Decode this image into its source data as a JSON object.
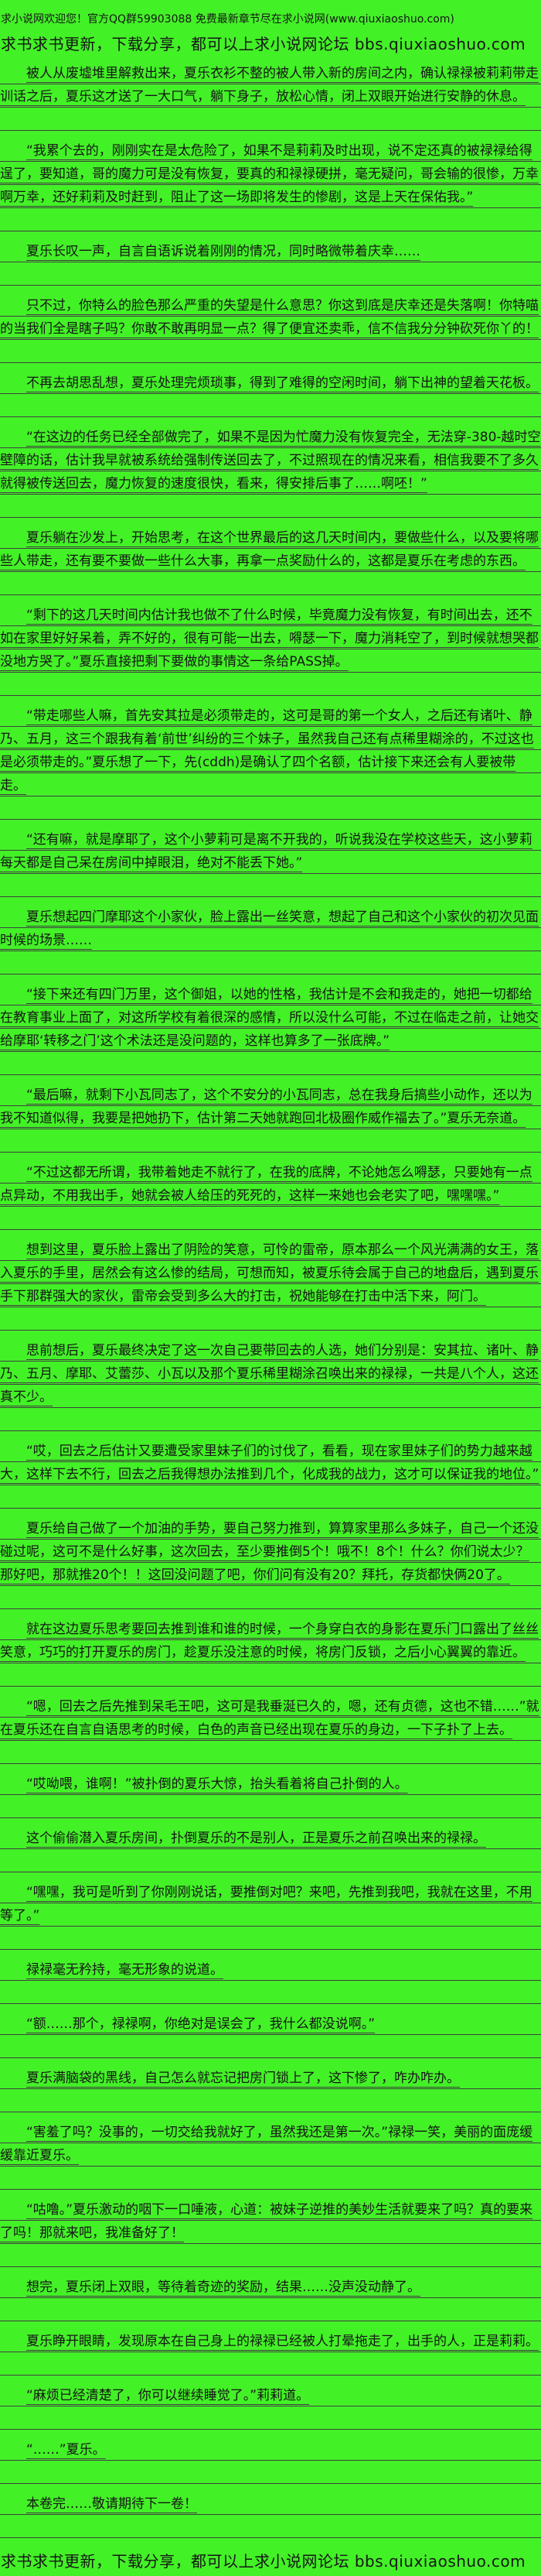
{
  "site": {
    "colors": {
      "background": "#43f127",
      "text": "#161616",
      "rule_line": "#3f3f3f"
    }
  },
  "header": {
    "welcome_line": "求小说网欢迎您！官方QQ群59903088 免费最新章节尽在求小说网(www.qiuxiaoshuo.com)",
    "promo_line": "求书求书更新，下载分享，都可以上求小说网论坛 bbs.qiuxiaoshuo.com"
  },
  "footer": {
    "promo_line": "求书求书更新，下载分享，都可以上求小说网论坛 bbs.qiuxiaoshuo.com"
  },
  "content": {
    "paragraphs": [
      "被人从废墟堆里解救出来，夏乐衣衫不整的被人带入新的房间之内，确认禄禄被莉莉带走训话之后，夏乐这才送了一大口气，躺下身子，放松心情，闭上双眼开始进行安静的休息。",
      "“我累个去的，刚刚实在是太危险了，如果不是莉莉及时出现，说不定还真的被禄禄给得逞了，要知道，哥的魔力可是没有恢复，要真的和禄禄硬拼，毫无疑问，哥会输的很惨，万幸啊万幸，还好莉莉及时赶到，阻止了这一场即将发生的惨剧，这是上天在保佑我。”",
      "夏乐长叹一声，自言自语诉说着刚刚的情况，同时略微带着庆幸……",
      "只不过，你特么的脸色那么严重的失望是什么意思？你这到底是庆幸还是失落啊！你特喵的当我们全是瞎子吗？你敢不敢再明显一点？得了便宜还卖乖，信不信我分分钟砍死你丫的！",
      "不再去胡思乱想，夏乐处理完烦琐事，得到了难得的空闲时间，躺下出神的望着天花板。",
      "“在这边的任务已经全部做完了，如果不是因为忙魔力没有恢复完全，无法穿-380-越时空壁障的话，估计我早就被系统给强制传送回去了，不过照现在的情况来看，相信我要不了多久就得被传送回去，魔力恢复的速度很快，看来，得安排后事了……啊呸！”",
      "夏乐躺在沙发上，开始思考，在这个世界最后的这几天时间内，要做些什么，以及要将哪些人带走，还有要不要做一些什么大事，再拿一点奖励什么的，这都是夏乐在考虑的东西。",
      "“剩下的这几天时间内估计我也做不了什么时候，毕竟魔力没有恢复，有时间出去，还不如在家里好好呆着，弄不好的，很有可能一出去，嘚瑟一下，魔力消耗空了，到时候就想哭都没地方哭了。”夏乐直接把剩下要做的事情这一条给PASS掉。",
      "“带走哪些人嘛，首先安其拉是必须带走的，这可是哥的第一个女人，之后还有诸叶、静乃、五月，这三个跟我有着‘前世’纠纷的三个妹子，虽然我自己还有点稀里糊涂的，不过这也是必须带走的。”夏乐想了一下，先(cddh)是确认了四个名额，估计接下来还会有人要被带走。",
      "“还有嘛，就是摩耶了，这个小萝莉可是离不开我的，听说我没在学校这些天，这小萝莉每天都是自己呆在房间中掉眼泪，绝对不能丢下她。”",
      "夏乐想起四门摩耶这个小家伙，脸上露出一丝笑意，想起了自己和这个小家伙的初次见面时候的场景……",
      "“接下来还有四门万里，这个御姐，以她的性格，我估计是不会和我走的，她把一切都给在教育事业上面了，对这所学校有着很深的感情，所以没什么可能，不过在临走之前，让她交给摩耶‘转移之门’这个术法还是没问题的，这样也算多了一张底牌。”",
      "“最后嘛，就剩下小瓦同志了，这个不安分的小瓦同志，总在我身后搞些小动作，还以为我不知道似得，我要是把她扔下，估计第二天她就跑回北极圈作威作福去了。”夏乐无奈道。",
      "“不过这都无所谓，我带着她走不就行了，在我的底牌，不论她怎么嘚瑟，只要她有一点点异动，不用我出手，她就会被人给压的死死的，这样一来她也会老实了吧，嘿嘿嘿。”",
      "想到这里，夏乐脸上露出了阴险的笑意，可怜的雷帝，原本那么一个风光满满的女王，落入夏乐的手里，居然会有这么惨的结局，可想而知，被夏乐待会属于自己的地盘后，遇到夏乐手下那群强大的家伙，雷帝会受到多么大的打击，祝她能够在打击中活下来，阿门。",
      "思前想后，夏乐最终决定了这一次自己要带回去的人选，她们分别是：安其拉、诸叶、静乃、五月、摩耶、艾蕾莎、小瓦以及那个夏乐稀里糊涂召唤出来的禄禄，一共是八个人，这还真不少。",
      "“哎，回去之后估计又要遭受家里妹子们的讨伐了，看看，现在家里妹子们的势力越来越大，这样下去不行，回去之后我得想办法推到几个，化成我的战力，这才可以保证我的地位。”",
      "夏乐给自己做了一个加油的手势，要自己努力推到，算算家里那么多妹子，自己一个还没碰过呢，这可不是什么好事，这次回去，至少要推倒5个！哦不！8个！什么？你们说太少？那好吧，那就推20个！！这回没问题了吧，你们问有没有20？拜托，存货都快俩20了。",
      "就在这边夏乐思考要回去推到谁和谁的时候，一个身穿白衣的身影在夏乐门口露出了丝丝笑意，巧巧的打开夏乐的房门，趁夏乐没注意的时候，将房门反锁，之后小心翼翼的靠近。",
      "“嗯，回去之后先推到呆毛王吧，这可是我垂涎已久的，嗯，还有贞德，这也不错……”就在夏乐还在自言自语思考的时候，白色的声音已经出现在夏乐的身边，一下子扑了上去。",
      "“哎呦喂，谁啊！”被扑倒的夏乐大惊，抬头看着将自己扑倒的人。",
      "这个偷偷潜入夏乐房间，扑倒夏乐的不是别人，正是夏乐之前召唤出来的禄禄。",
      "“嘿嘿，我可是听到了你刚刚说话，要推倒对吧？来吧，先推到我吧，我就在这里，不用等了。”",
      "禄禄毫无矜持，毫无形象的说道。",
      "“额……那个，禄禄啊，你绝对是误会了，我什么都没说啊。”",
      "夏乐满脑袋的黑线，自己怎么就忘记把房门锁上了，这下惨了，咋办咋办。",
      "“害羞了吗？没事的，一切交给我就好了，虽然我还是第一次。”禄禄一笑，美丽的面庞缓缓靠近夏乐。",
      "“咕噜。”夏乐激动的咽下一口唾液，心道：被妹子逆推的美妙生活就要来了吗？真的要来了吗！那就来吧，我准备好了！",
      "想完，夏乐闭上双眼，等待着奇迹的奖励，结果……没声没动静了。",
      "夏乐睁开眼睛，发现原本在自己身上的禄禄已经被人打晕拖走了，出手的人，正是莉莉。",
      "“麻烦已经清楚了，你可以继续睡觉了。”莉莉道。",
      "“……”夏乐。",
      "本卷完……敬请期待下一卷！"
    ]
  }
}
